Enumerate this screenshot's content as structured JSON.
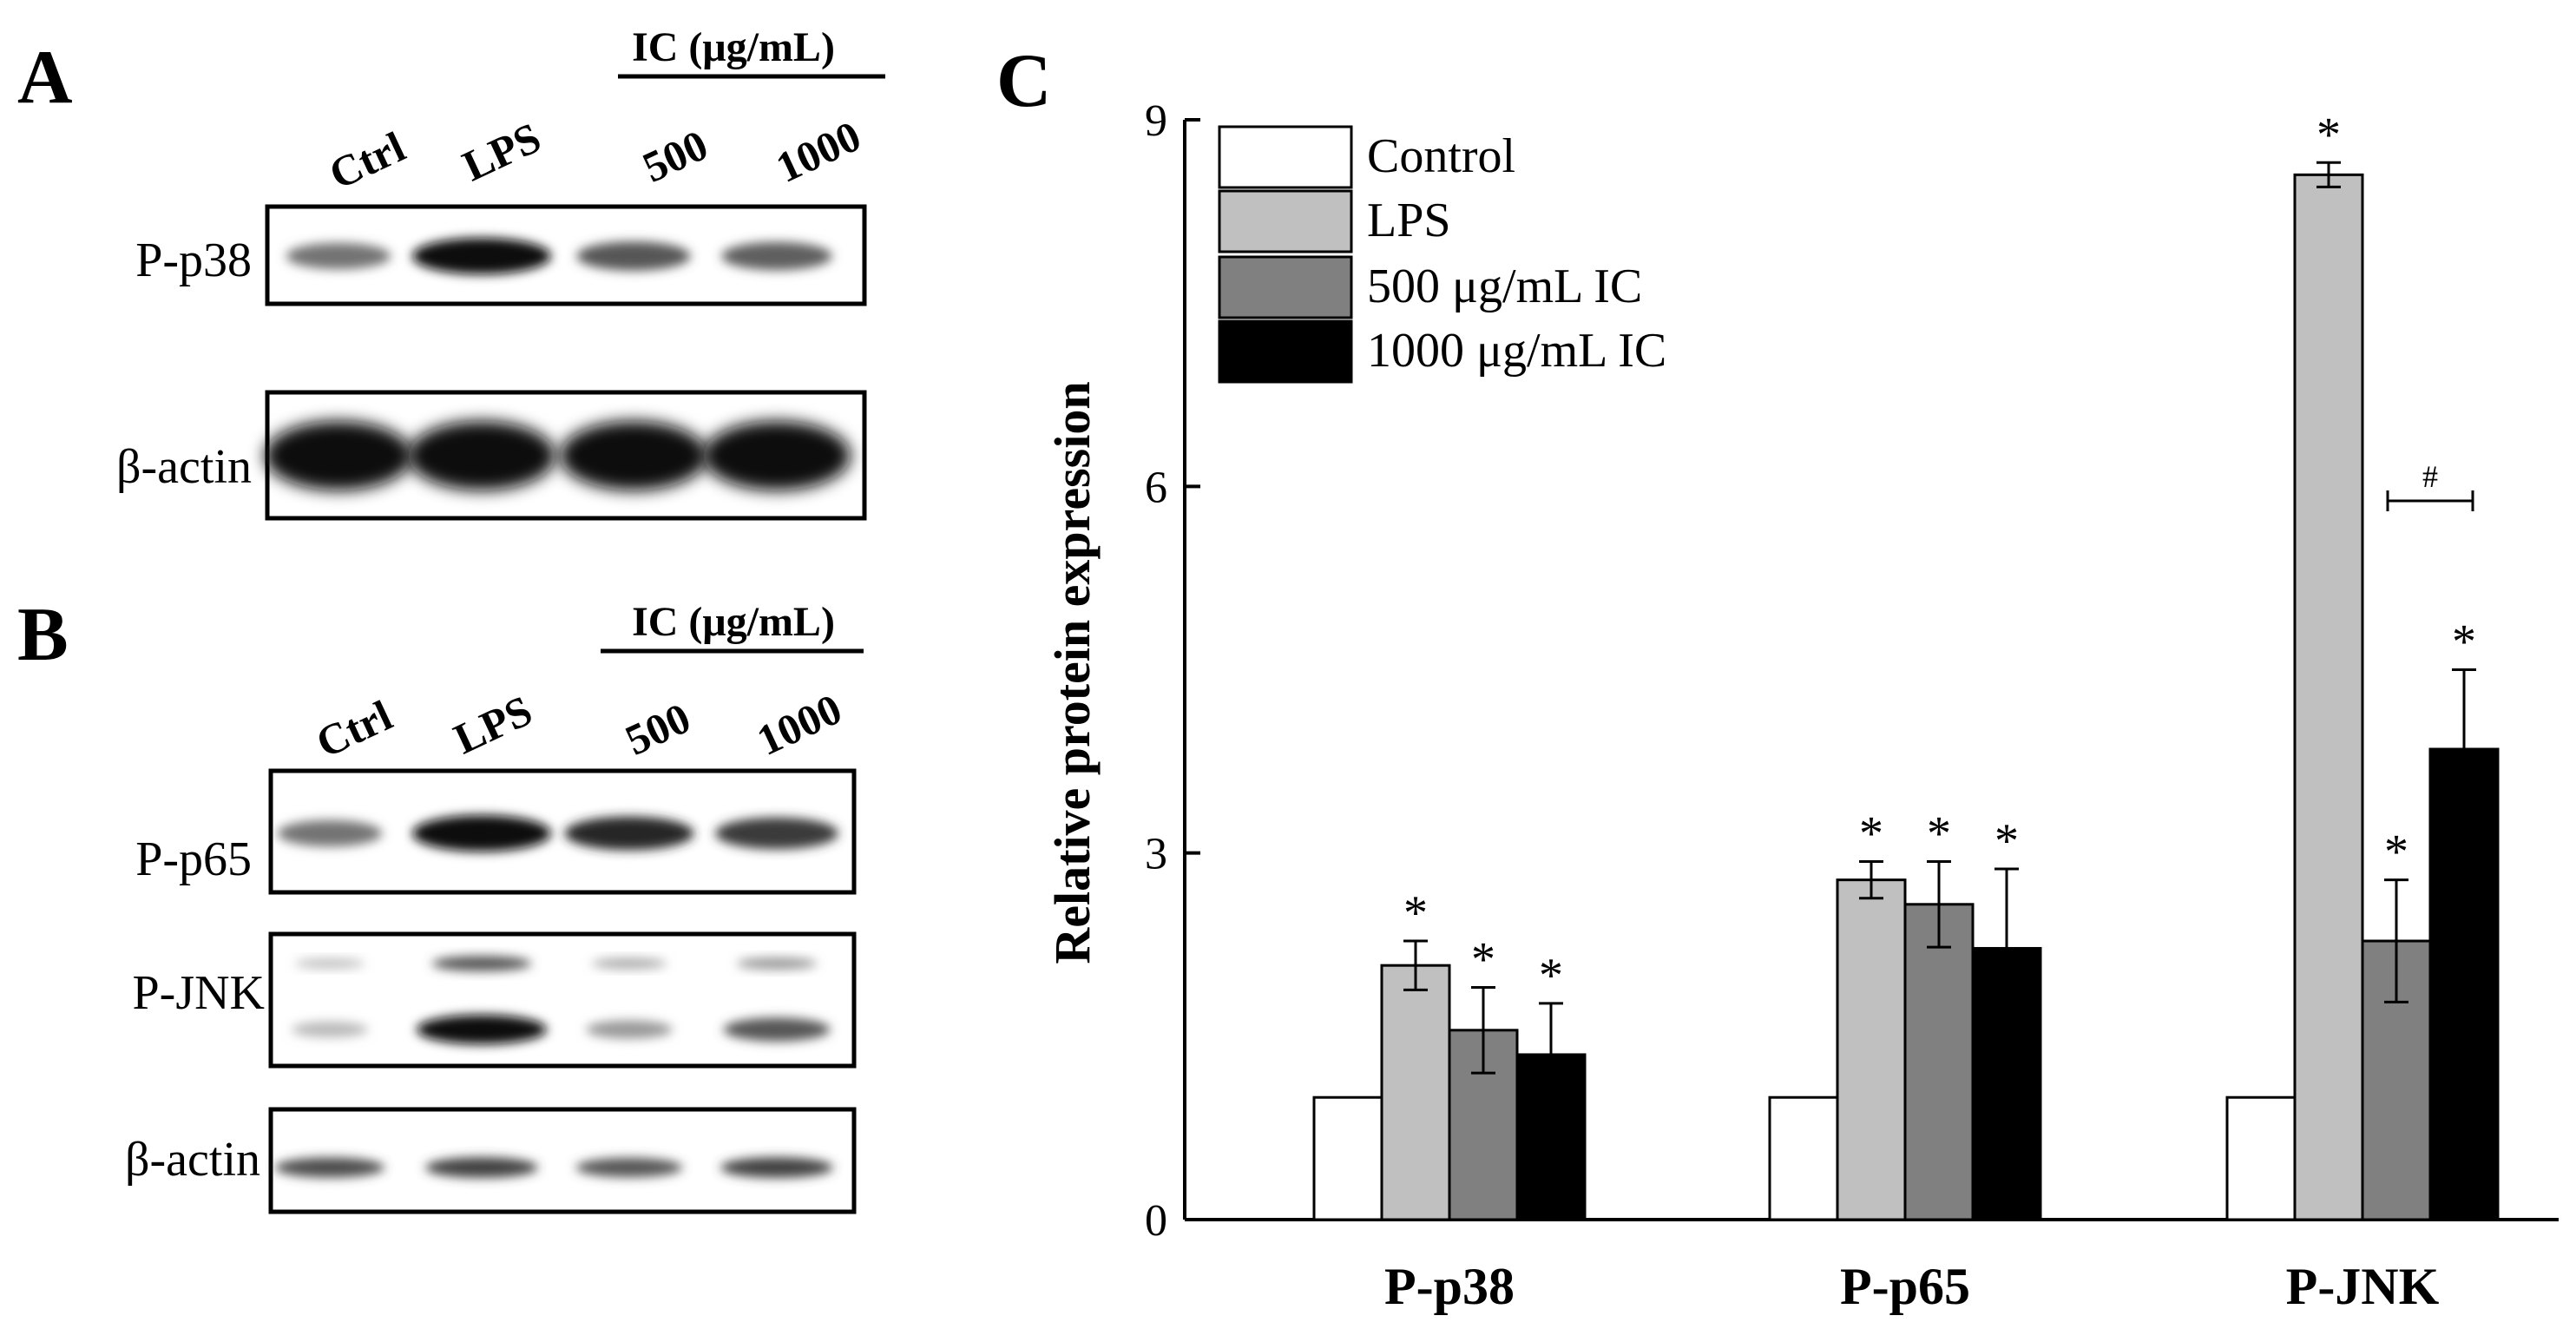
{
  "panel_a": {
    "letter": "A",
    "ic_header": "IC (μg/mL)",
    "lanes": [
      "Ctrl",
      "LPS",
      "500",
      "1000"
    ],
    "rows": [
      {
        "label": "P-p38",
        "intensity": [
          0.45,
          1.0,
          0.6,
          0.55
        ]
      },
      {
        "label": "β-actin",
        "intensity": [
          1.0,
          1.0,
          1.0,
          1.0
        ]
      }
    ]
  },
  "panel_b": {
    "letter": "B",
    "ic_header": "IC (μg/mL)",
    "lanes": [
      "Ctrl",
      "LPS",
      "500",
      "1000"
    ],
    "rows": [
      {
        "label": "P-p65",
        "intensity": [
          0.45,
          1.0,
          0.85,
          0.75
        ]
      },
      {
        "label": "P-JNK",
        "intensity_upper": [
          0.05,
          0.6,
          0.15,
          0.25
        ],
        "intensity_lower": [
          0.08,
          1.0,
          0.25,
          0.6
        ]
      },
      {
        "label": "β-actin",
        "intensity": [
          0.65,
          0.7,
          0.6,
          0.7
        ]
      }
    ]
  },
  "chart_data": {
    "type": "bar",
    "panel_letter": "C",
    "categories": [
      "P-p38",
      "P-p65",
      "P-JNK"
    ],
    "ylabel": "Relative protein expression",
    "ylim": [
      0,
      9
    ],
    "yticks": [
      0,
      3,
      6,
      9
    ],
    "legend_position": "top-left",
    "series": [
      {
        "name": "Control",
        "color": "#ffffff",
        "values": [
          1.0,
          1.0,
          1.0
        ],
        "errors": [
          0,
          0,
          0
        ],
        "sig": [
          "",
          "",
          ""
        ]
      },
      {
        "name": "LPS",
        "color": "#c0c0c0",
        "values": [
          2.08,
          2.78,
          8.55
        ],
        "errors": [
          0.2,
          0.15,
          0.1
        ],
        "sig": [
          "*",
          "*",
          "*"
        ]
      },
      {
        "name": "500 μg/mL IC",
        "color": "#808080",
        "values": [
          1.55,
          2.58,
          2.28
        ],
        "errors": [
          0.35,
          0.35,
          0.5
        ],
        "sig": [
          "*",
          "*",
          "*"
        ]
      },
      {
        "name": "1000 μg/mL IC",
        "color": "#000000",
        "values": [
          1.35,
          2.22,
          3.85
        ],
        "errors": [
          0.42,
          0.65,
          0.65
        ],
        "sig": [
          "*",
          "*",
          "*"
        ]
      }
    ],
    "annotation": "#"
  }
}
